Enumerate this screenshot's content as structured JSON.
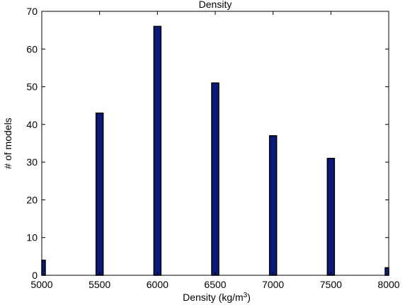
{
  "chart_data": {
    "type": "bar",
    "title": "Density",
    "xlabel_prefix": "Density (kg/m",
    "xlabel_sup": "3",
    "xlabel_suffix": ")",
    "ylabel": "# of models",
    "x": [
      5000,
      5500,
      6000,
      6500,
      7000,
      7500,
      8000
    ],
    "values": [
      4,
      43,
      66,
      51,
      37,
      31,
      2
    ],
    "xlim": [
      5000,
      8000
    ],
    "ylim": [
      0,
      70
    ],
    "xticks": [
      5000,
      5500,
      6000,
      6500,
      7000,
      7500,
      8000
    ],
    "yticks": [
      0,
      10,
      20,
      30,
      40,
      50,
      60,
      70
    ],
    "grid": false,
    "bar_color": "#0a1a78",
    "bar_edge_color": "#000000"
  }
}
